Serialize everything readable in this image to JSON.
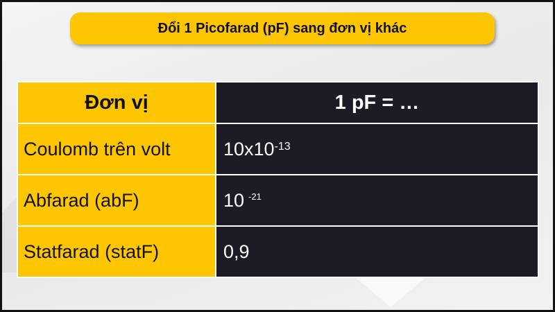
{
  "title": "Đổi 1 Picofarad (pF) sang đơn vị khác",
  "table": {
    "headers": [
      "Đơn vị",
      "1 pF = …"
    ],
    "rows": [
      {
        "unit": "Coulomb trên volt",
        "value_base": "10x10",
        "value_exp": "-13"
      },
      {
        "unit": "Abfarad (abF)",
        "value_base": "10",
        "value_exp": "-21"
      },
      {
        "unit": "Statfarad (statF)",
        "value_base": "0,9",
        "value_exp": ""
      }
    ]
  },
  "colors": {
    "accent": "#fdc600",
    "dark": "#1c1b26"
  }
}
